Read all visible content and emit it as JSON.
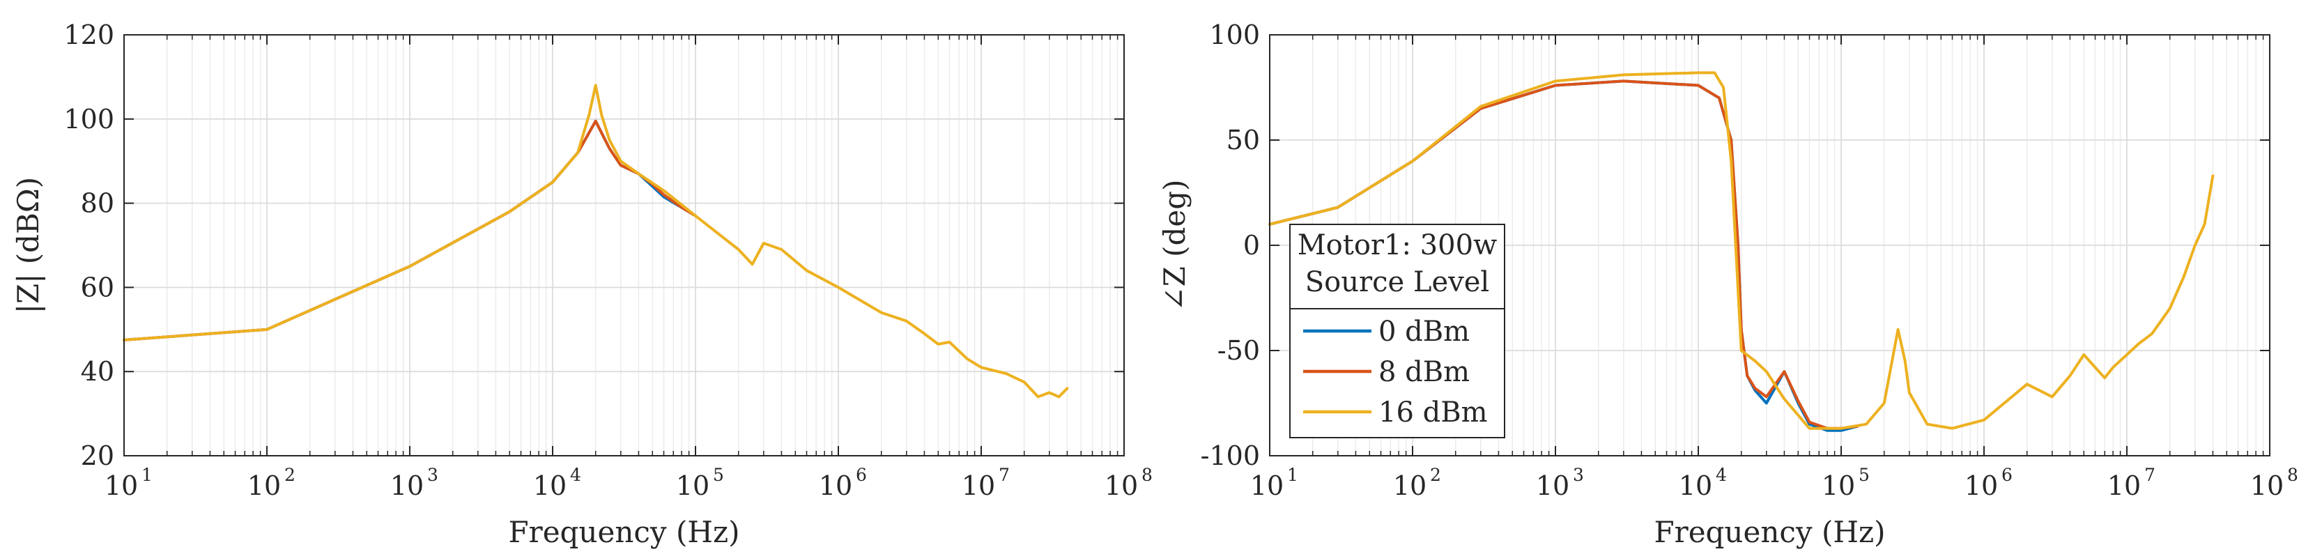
{
  "colors": {
    "series": [
      "#0072BD",
      "#D95319",
      "#EDB120"
    ],
    "grid_major": "#dcdcdc",
    "grid_minor": "#ececec",
    "axis": "#262626"
  },
  "legend": {
    "title_line1": "Motor1: 300w",
    "title_line2": "Source Level",
    "entries": [
      "0 dBm",
      "8 dBm",
      "16 dBm"
    ]
  },
  "chart_data": [
    {
      "type": "line",
      "xscale": "log",
      "xlabel": "Frequency (Hz)",
      "ylabel": "|Z| (dBΩ)",
      "xlim": [
        10,
        100000000
      ],
      "ylim": [
        20,
        120
      ],
      "xticks": [
        {
          "base": "10",
          "exp": "1"
        },
        {
          "base": "10",
          "exp": "2"
        },
        {
          "base": "10",
          "exp": "3"
        },
        {
          "base": "10",
          "exp": "4"
        },
        {
          "base": "10",
          "exp": "5"
        },
        {
          "base": "10",
          "exp": "6"
        },
        {
          "base": "10",
          "exp": "7"
        },
        {
          "base": "10",
          "exp": "8"
        }
      ],
      "yticks": [
        "20",
        "40",
        "60",
        "80",
        "100",
        "120"
      ],
      "grid": true,
      "series": [
        {
          "name": "0 dBm",
          "x": [
            10,
            100,
            1000,
            5000,
            10000,
            15000,
            20000,
            25000,
            30000,
            40000,
            50000,
            60000,
            80000,
            100000
          ],
          "y": [
            47.5,
            50,
            65,
            78,
            85,
            92,
            99.5,
            93,
            89,
            87,
            84,
            81.5,
            79,
            77
          ]
        },
        {
          "name": "8 dBm",
          "x": [
            10,
            100,
            1000,
            5000,
            10000,
            15000,
            20000,
            25000,
            30000,
            40000,
            50000,
            60000,
            80000,
            100000
          ],
          "y": [
            47.5,
            50,
            65,
            78,
            85,
            92,
            99.5,
            93,
            89,
            87,
            84.5,
            82,
            79,
            77
          ]
        },
        {
          "name": "16 dBm",
          "x": [
            10,
            100,
            1000,
            5000,
            10000,
            15000,
            18000,
            20000,
            22000,
            25000,
            30000,
            40000,
            60000,
            100000,
            200000,
            250000,
            300000,
            400000,
            600000,
            1000000,
            2000000,
            3000000,
            4000000,
            5000000,
            6000000,
            8000000,
            10000000,
            15000000,
            20000000,
            25000000,
            30000000,
            35000000,
            40000000
          ],
          "y": [
            47.5,
            50,
            65,
            78,
            85,
            92,
            101,
            108,
            101,
            95,
            90,
            87,
            83,
            77,
            69,
            65.5,
            70.5,
            69,
            64,
            60,
            54,
            52,
            49,
            46.5,
            47,
            43,
            41,
            39.5,
            37.5,
            34,
            35,
            34,
            36
          ]
        }
      ]
    },
    {
      "type": "line",
      "xscale": "log",
      "xlabel": "Frequency (Hz)",
      "ylabel": "∠Z (deg)",
      "xlim": [
        10,
        100000000
      ],
      "ylim": [
        -100,
        100
      ],
      "xticks": [
        {
          "base": "10",
          "exp": "1"
        },
        {
          "base": "10",
          "exp": "2"
        },
        {
          "base": "10",
          "exp": "3"
        },
        {
          "base": "10",
          "exp": "4"
        },
        {
          "base": "10",
          "exp": "5"
        },
        {
          "base": "10",
          "exp": "6"
        },
        {
          "base": "10",
          "exp": "7"
        },
        {
          "base": "10",
          "exp": "8"
        }
      ],
      "yticks": [
        "-100",
        "-50",
        "0",
        "50",
        "100"
      ],
      "grid": true,
      "legend_position": "bottom-left",
      "series": [
        {
          "name": "0 dBm",
          "x": [
            10,
            30,
            100,
            300,
            1000,
            3000,
            10000,
            14000,
            17000,
            19000,
            20000,
            22000,
            25000,
            30000,
            40000,
            50000,
            60000,
            80000,
            100000,
            130000
          ],
          "y": [
            10,
            18,
            40,
            65,
            76,
            78,
            76,
            70,
            50,
            0,
            -40,
            -62,
            -69,
            -75,
            -60,
            -75,
            -85,
            -88,
            -88,
            -86
          ]
        },
        {
          "name": "8 dBm",
          "x": [
            10,
            30,
            100,
            300,
            1000,
            3000,
            10000,
            14000,
            17000,
            19000,
            20000,
            22000,
            25000,
            30000,
            40000,
            50000,
            60000,
            80000,
            100000,
            130000
          ],
          "y": [
            10,
            18,
            40,
            65,
            76,
            78,
            76,
            70,
            50,
            0,
            -40,
            -62,
            -68,
            -72,
            -60,
            -74,
            -84,
            -87,
            -87,
            -86
          ]
        },
        {
          "name": "16 dBm",
          "x": [
            10,
            30,
            100,
            300,
            1000,
            3000,
            10000,
            13000,
            15000,
            17000,
            20000,
            25000,
            30000,
            40000,
            60000,
            100000,
            150000,
            200000,
            250000,
            280000,
            300000,
            400000,
            600000,
            1000000,
            2000000,
            3000000,
            4000000,
            5000000,
            6000000,
            7000000,
            8000000,
            10000000,
            12000000,
            15000000,
            20000000,
            25000000,
            30000000,
            35000000,
            40000000
          ],
          "y": [
            10,
            18,
            40,
            66,
            78,
            81,
            82,
            82,
            75,
            40,
            -50,
            -55,
            -60,
            -73,
            -87,
            -87,
            -85,
            -75,
            -40,
            -55,
            -70,
            -85,
            -87,
            -83,
            -66,
            -72,
            -62,
            -52,
            -58,
            -63,
            -58,
            -52,
            -47,
            -42,
            -30,
            -15,
            0,
            10,
            33
          ]
        }
      ]
    }
  ]
}
